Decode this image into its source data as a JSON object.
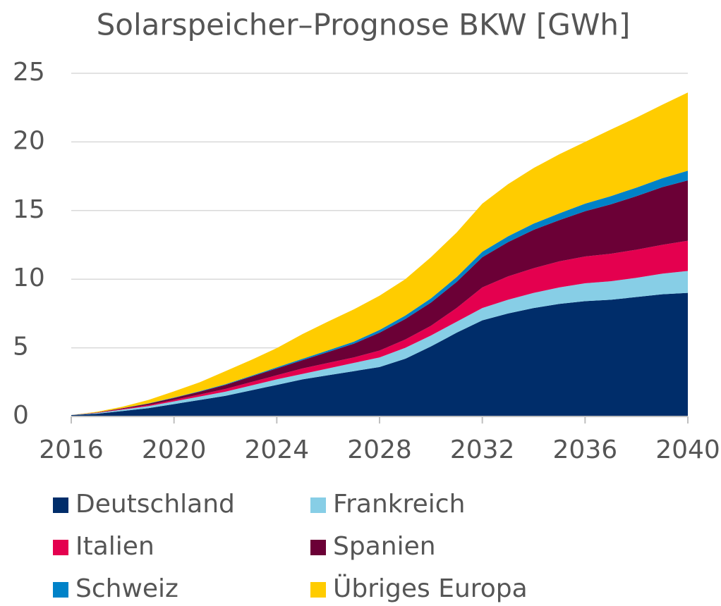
{
  "chart_data": {
    "type": "stacked_area",
    "title": "Solarspeicher–Prognose BKW [GWh]",
    "x": [
      2016,
      2017,
      2018,
      2019,
      2020,
      2021,
      2022,
      2023,
      2024,
      2025,
      2026,
      2027,
      2028,
      2029,
      2030,
      2031,
      2032,
      2033,
      2034,
      2035,
      2036,
      2037,
      2038,
      2039,
      2040
    ],
    "series": [
      {
        "name": "Deutschland",
        "color": "#002d6a",
        "values": [
          0.1,
          0.2,
          0.4,
          0.6,
          0.9,
          1.2,
          1.5,
          1.9,
          2.3,
          2.7,
          3.0,
          3.3,
          3.6,
          4.2,
          5.1,
          6.1,
          7.0,
          7.5,
          7.9,
          8.2,
          8.4,
          8.5,
          8.7,
          8.9,
          9.0
        ]
      },
      {
        "name": "Frankreich",
        "color": "#87cee6",
        "values": [
          0,
          0.05,
          0.1,
          0.15,
          0.2,
          0.25,
          0.3,
          0.35,
          0.4,
          0.4,
          0.5,
          0.6,
          0.7,
          0.8,
          0.8,
          0.8,
          0.9,
          1.0,
          1.1,
          1.2,
          1.3,
          1.35,
          1.4,
          1.5,
          1.6
        ]
      },
      {
        "name": "Italien",
        "color": "#e4004f",
        "values": [
          0,
          0.02,
          0.05,
          0.08,
          0.1,
          0.15,
          0.2,
          0.25,
          0.3,
          0.4,
          0.4,
          0.4,
          0.5,
          0.6,
          0.7,
          1.0,
          1.5,
          1.7,
          1.8,
          1.9,
          1.95,
          2.0,
          2.05,
          2.1,
          2.2
        ]
      },
      {
        "name": "Spanien",
        "color": "#6b0036",
        "values": [
          0,
          0.02,
          0.05,
          0.1,
          0.15,
          0.2,
          0.3,
          0.4,
          0.5,
          0.6,
          0.8,
          1.0,
          1.3,
          1.5,
          1.7,
          1.9,
          2.2,
          2.5,
          2.8,
          3.0,
          3.3,
          3.6,
          3.9,
          4.2,
          4.4
        ]
      },
      {
        "name": "Schweiz",
        "color": "#0082c8",
        "values": [
          0,
          0,
          0.01,
          0.02,
          0.03,
          0.04,
          0.05,
          0.06,
          0.08,
          0.1,
          0.12,
          0.15,
          0.2,
          0.25,
          0.3,
          0.35,
          0.4,
          0.42,
          0.45,
          0.5,
          0.55,
          0.6,
          0.62,
          0.65,
          0.7
        ]
      },
      {
        "name": "Übriges Europa",
        "color": "#ffcc00",
        "values": [
          0,
          0.05,
          0.1,
          0.25,
          0.45,
          0.65,
          0.95,
          1.15,
          1.4,
          1.8,
          2.1,
          2.35,
          2.5,
          2.65,
          3.0,
          3.25,
          3.5,
          3.8,
          4.05,
          4.3,
          4.5,
          4.85,
          5.1,
          5.35,
          5.7
        ]
      }
    ],
    "xlim": [
      2016,
      2040
    ],
    "xticks": [
      2016,
      2020,
      2024,
      2028,
      2032,
      2036,
      2040
    ],
    "ylim": [
      0,
      25
    ],
    "yticks": [
      0,
      5,
      10,
      15,
      20,
      25
    ],
    "grid": true
  }
}
